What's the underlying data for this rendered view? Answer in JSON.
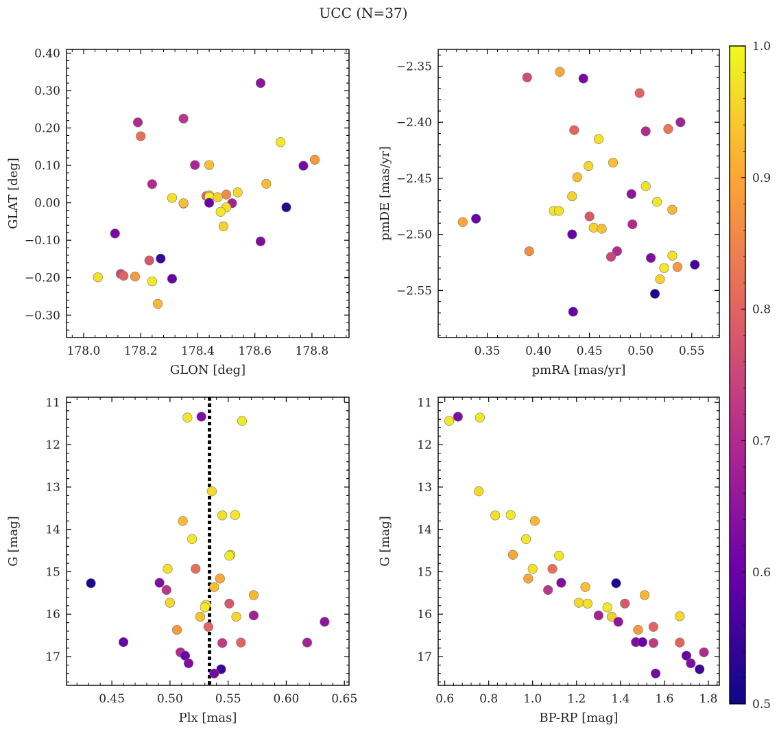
{
  "figure": {
    "title": "UCC (N=37)"
  },
  "colorbar": {
    "min": 0.5,
    "max": 1.0,
    "ticks": [
      0.5,
      0.6,
      0.7,
      0.8,
      0.9,
      1.0
    ]
  },
  "colormap_stops": [
    "#0d0887",
    "#6a00a8",
    "#b12a90",
    "#e16462",
    "#fca636",
    "#f0f921"
  ],
  "chart_data": [
    {
      "type": "scatter",
      "xlabel": "GLON [deg]",
      "ylabel": "GLAT [deg]",
      "xlim": [
        177.94,
        178.93
      ],
      "ylim": [
        -0.36,
        0.41
      ],
      "xticks": [
        178.0,
        178.2,
        178.4,
        178.6,
        178.8
      ],
      "yticks": [
        -0.3,
        -0.2,
        -0.1,
        0.0,
        0.1,
        0.2,
        0.3,
        0.4
      ],
      "points": [
        {
          "x": 178.62,
          "y": 0.32,
          "c": 0.65
        },
        {
          "x": 178.35,
          "y": 0.225,
          "c": 0.72
        },
        {
          "x": 178.19,
          "y": 0.215,
          "c": 0.7
        },
        {
          "x": 178.2,
          "y": 0.178,
          "c": 0.82
        },
        {
          "x": 178.69,
          "y": 0.162,
          "c": 0.98
        },
        {
          "x": 178.81,
          "y": 0.115,
          "c": 0.88
        },
        {
          "x": 178.39,
          "y": 0.101,
          "c": 0.69
        },
        {
          "x": 178.44,
          "y": 0.101,
          "c": 0.93
        },
        {
          "x": 178.77,
          "y": 0.099,
          "c": 0.62
        },
        {
          "x": 178.24,
          "y": 0.05,
          "c": 0.7
        },
        {
          "x": 178.64,
          "y": 0.051,
          "c": 0.93
        },
        {
          "x": 178.54,
          "y": 0.028,
          "c": 0.96
        },
        {
          "x": 178.43,
          "y": 0.018,
          "c": 0.8
        },
        {
          "x": 178.44,
          "y": 0.02,
          "c": 0.92
        },
        {
          "x": 178.5,
          "y": 0.022,
          "c": 0.86
        },
        {
          "x": 178.31,
          "y": 0.013,
          "c": 0.97
        },
        {
          "x": 178.44,
          "y": 0.016,
          "c": 0.99
        },
        {
          "x": 178.47,
          "y": 0.015,
          "c": 0.95
        },
        {
          "x": 178.35,
          "y": -0.002,
          "c": 0.95
        },
        {
          "x": 178.35,
          "y": -0.001,
          "c": 0.93
        },
        {
          "x": 178.44,
          "y": 0.0,
          "c": 0.6
        },
        {
          "x": 178.52,
          "y": -0.001,
          "c": 0.68
        },
        {
          "x": 178.71,
          "y": -0.012,
          "c": 0.53
        },
        {
          "x": 178.5,
          "y": -0.012,
          "c": 0.97
        },
        {
          "x": 178.48,
          "y": -0.024,
          "c": 0.98
        },
        {
          "x": 178.49,
          "y": -0.063,
          "c": 0.95
        },
        {
          "x": 178.11,
          "y": -0.082,
          "c": 0.62
        },
        {
          "x": 178.62,
          "y": -0.103,
          "c": 0.63
        },
        {
          "x": 178.27,
          "y": -0.149,
          "c": 0.55
        },
        {
          "x": 178.23,
          "y": -0.154,
          "c": 0.78
        },
        {
          "x": 178.13,
          "y": -0.19,
          "c": 0.75
        },
        {
          "x": 178.14,
          "y": -0.195,
          "c": 0.8
        },
        {
          "x": 178.18,
          "y": -0.197,
          "c": 0.88
        },
        {
          "x": 178.05,
          "y": -0.199,
          "c": 0.97
        },
        {
          "x": 178.31,
          "y": -0.203,
          "c": 0.6
        },
        {
          "x": 178.24,
          "y": -0.21,
          "c": 0.98
        },
        {
          "x": 178.26,
          "y": -0.27,
          "c": 0.92
        }
      ]
    },
    {
      "type": "scatter",
      "xlabel": "pmRA [mas/yr]",
      "ylabel": "pmDE [mas/yr]",
      "xlim": [
        0.302,
        0.577
      ],
      "ylim": [
        -2.592,
        -2.335
      ],
      "xticks": [
        0.35,
        0.4,
        0.45,
        0.5,
        0.55
      ],
      "yticks": [
        -2.35,
        -2.4,
        -2.45,
        -2.5,
        -2.55
      ],
      "points": [
        {
          "x": 0.421,
          "y": -2.355,
          "c": 0.9
        },
        {
          "x": 0.389,
          "y": -2.36,
          "c": 0.76
        },
        {
          "x": 0.444,
          "y": -2.361,
          "c": 0.62
        },
        {
          "x": 0.499,
          "y": -2.374,
          "c": 0.8
        },
        {
          "x": 0.539,
          "y": -2.4,
          "c": 0.68
        },
        {
          "x": 0.527,
          "y": -2.406,
          "c": 0.83
        },
        {
          "x": 0.435,
          "y": -2.407,
          "c": 0.8
        },
        {
          "x": 0.505,
          "y": -2.408,
          "c": 0.7
        },
        {
          "x": 0.459,
          "y": -2.415,
          "c": 0.97
        },
        {
          "x": 0.473,
          "y": -2.436,
          "c": 0.93
        },
        {
          "x": 0.449,
          "y": -2.439,
          "c": 0.96
        },
        {
          "x": 0.438,
          "y": -2.449,
          "c": 0.93
        },
        {
          "x": 0.505,
          "y": -2.457,
          "c": 0.97
        },
        {
          "x": 0.491,
          "y": -2.464,
          "c": 0.65
        },
        {
          "x": 0.433,
          "y": -2.466,
          "c": 0.95
        },
        {
          "x": 0.516,
          "y": -2.471,
          "c": 0.98
        },
        {
          "x": 0.531,
          "y": -2.478,
          "c": 0.92
        },
        {
          "x": 0.415,
          "y": -2.479,
          "c": 0.98
        },
        {
          "x": 0.42,
          "y": -2.479,
          "c": 0.97
        },
        {
          "x": 0.45,
          "y": -2.484,
          "c": 0.78
        },
        {
          "x": 0.339,
          "y": -2.486,
          "c": 0.6
        },
        {
          "x": 0.326,
          "y": -2.489,
          "c": 0.9
        },
        {
          "x": 0.492,
          "y": -2.491,
          "c": 0.7
        },
        {
          "x": 0.454,
          "y": -2.494,
          "c": 0.95
        },
        {
          "x": 0.462,
          "y": -2.495,
          "c": 0.93
        },
        {
          "x": 0.433,
          "y": -2.5,
          "c": 0.6
        },
        {
          "x": 0.391,
          "y": -2.515,
          "c": 0.86
        },
        {
          "x": 0.477,
          "y": -2.515,
          "c": 0.7
        },
        {
          "x": 0.531,
          "y": -2.519,
          "c": 0.97
        },
        {
          "x": 0.471,
          "y": -2.52,
          "c": 0.75
        },
        {
          "x": 0.51,
          "y": -2.521,
          "c": 0.63
        },
        {
          "x": 0.553,
          "y": -2.527,
          "c": 0.56
        },
        {
          "x": 0.536,
          "y": -2.529,
          "c": 0.88
        },
        {
          "x": 0.523,
          "y": -2.53,
          "c": 0.98
        },
        {
          "x": 0.519,
          "y": -2.54,
          "c": 0.95
        },
        {
          "x": 0.514,
          "y": -2.553,
          "c": 0.52
        },
        {
          "x": 0.434,
          "y": -2.569,
          "c": 0.6
        }
      ]
    },
    {
      "type": "scatter",
      "xlabel": "Plx [mas]",
      "ylabel": "G [mag]",
      "xlim": [
        0.411,
        0.654
      ],
      "ylim": [
        17.68,
        10.88
      ],
      "xticks": [
        0.45,
        0.5,
        0.55,
        0.6,
        0.65
      ],
      "yticks": [
        11,
        12,
        13,
        14,
        15,
        16,
        17
      ],
      "vline_x": 0.534,
      "points": [
        {
          "x": 0.515,
          "y": 11.36,
          "c": 0.98
        },
        {
          "x": 0.527,
          "y": 11.34,
          "c": 0.63
        },
        {
          "x": 0.562,
          "y": 11.44,
          "c": 0.98
        },
        {
          "x": 0.536,
          "y": 13.1,
          "c": 0.96
        },
        {
          "x": 0.545,
          "y": 13.67,
          "c": 0.97
        },
        {
          "x": 0.556,
          "y": 13.66,
          "c": 0.98
        },
        {
          "x": 0.511,
          "y": 13.8,
          "c": 0.92
        },
        {
          "x": 0.519,
          "y": 14.23,
          "c": 0.98
        },
        {
          "x": 0.552,
          "y": 14.6,
          "c": 0.95
        },
        {
          "x": 0.551,
          "y": 14.62,
          "c": 0.98
        },
        {
          "x": 0.498,
          "y": 14.93,
          "c": 0.97
        },
        {
          "x": 0.522,
          "y": 14.93,
          "c": 0.82
        },
        {
          "x": 0.543,
          "y": 15.16,
          "c": 0.9
        },
        {
          "x": 0.432,
          "y": 15.27,
          "c": 0.52
        },
        {
          "x": 0.491,
          "y": 15.26,
          "c": 0.63
        },
        {
          "x": 0.538,
          "y": 15.36,
          "c": 0.93
        },
        {
          "x": 0.497,
          "y": 15.43,
          "c": 0.72
        },
        {
          "x": 0.572,
          "y": 15.55,
          "c": 0.92
        },
        {
          "x": 0.5,
          "y": 15.73,
          "c": 0.96
        },
        {
          "x": 0.551,
          "y": 15.75,
          "c": 0.78
        },
        {
          "x": 0.531,
          "y": 15.78,
          "c": 0.97
        },
        {
          "x": 0.53,
          "y": 15.84,
          "c": 0.98
        },
        {
          "x": 0.572,
          "y": 16.03,
          "c": 0.68
        },
        {
          "x": 0.526,
          "y": 16.06,
          "c": 0.93
        },
        {
          "x": 0.557,
          "y": 16.06,
          "c": 0.96
        },
        {
          "x": 0.633,
          "y": 16.18,
          "c": 0.65
        },
        {
          "x": 0.533,
          "y": 16.3,
          "c": 0.8
        },
        {
          "x": 0.506,
          "y": 16.37,
          "c": 0.88
        },
        {
          "x": 0.46,
          "y": 16.66,
          "c": 0.6
        },
        {
          "x": 0.545,
          "y": 16.68,
          "c": 0.73
        },
        {
          "x": 0.561,
          "y": 16.67,
          "c": 0.8
        },
        {
          "x": 0.618,
          "y": 16.67,
          "c": 0.68
        },
        {
          "x": 0.509,
          "y": 16.9,
          "c": 0.7
        },
        {
          "x": 0.513,
          "y": 16.98,
          "c": 0.6
        },
        {
          "x": 0.516,
          "y": 17.16,
          "c": 0.63
        },
        {
          "x": 0.544,
          "y": 17.3,
          "c": 0.55
        },
        {
          "x": 0.538,
          "y": 17.4,
          "c": 0.62
        }
      ]
    },
    {
      "type": "scatter",
      "xlabel": "BP-RP [mag]",
      "ylabel": "G [mag]",
      "xlim": [
        0.57,
        1.85
      ],
      "ylim": [
        17.68,
        10.88
      ],
      "xticks": [
        0.6,
        0.8,
        1.0,
        1.2,
        1.4,
        1.6,
        1.8
      ],
      "yticks": [
        11,
        12,
        13,
        14,
        15,
        16,
        17
      ],
      "points": [
        {
          "x": 0.62,
          "y": 11.44,
          "c": 0.98
        },
        {
          "x": 0.66,
          "y": 11.34,
          "c": 0.63
        },
        {
          "x": 0.76,
          "y": 11.36,
          "c": 0.98
        },
        {
          "x": 0.755,
          "y": 13.1,
          "c": 0.96
        },
        {
          "x": 0.83,
          "y": 13.67,
          "c": 0.97
        },
        {
          "x": 0.9,
          "y": 13.66,
          "c": 0.98
        },
        {
          "x": 1.01,
          "y": 13.8,
          "c": 0.92
        },
        {
          "x": 0.97,
          "y": 14.23,
          "c": 0.98
        },
        {
          "x": 0.91,
          "y": 14.6,
          "c": 0.9
        },
        {
          "x": 1.12,
          "y": 14.62,
          "c": 0.98
        },
        {
          "x": 1.0,
          "y": 14.93,
          "c": 0.97
        },
        {
          "x": 1.09,
          "y": 14.93,
          "c": 0.82
        },
        {
          "x": 0.98,
          "y": 15.16,
          "c": 0.9
        },
        {
          "x": 1.13,
          "y": 15.26,
          "c": 0.63
        },
        {
          "x": 1.38,
          "y": 15.27,
          "c": 0.52
        },
        {
          "x": 1.24,
          "y": 15.36,
          "c": 0.93
        },
        {
          "x": 1.07,
          "y": 15.43,
          "c": 0.72
        },
        {
          "x": 1.51,
          "y": 15.55,
          "c": 0.92
        },
        {
          "x": 1.21,
          "y": 15.73,
          "c": 0.96
        },
        {
          "x": 1.25,
          "y": 15.75,
          "c": 0.97
        },
        {
          "x": 1.42,
          "y": 15.75,
          "c": 0.78
        },
        {
          "x": 1.34,
          "y": 15.84,
          "c": 0.98
        },
        {
          "x": 1.3,
          "y": 16.03,
          "c": 0.68
        },
        {
          "x": 1.36,
          "y": 16.06,
          "c": 0.95
        },
        {
          "x": 1.67,
          "y": 16.05,
          "c": 0.96
        },
        {
          "x": 1.39,
          "y": 16.18,
          "c": 0.65
        },
        {
          "x": 1.55,
          "y": 16.3,
          "c": 0.8
        },
        {
          "x": 1.48,
          "y": 16.37,
          "c": 0.88
        },
        {
          "x": 1.47,
          "y": 16.66,
          "c": 0.63
        },
        {
          "x": 1.5,
          "y": 16.66,
          "c": 0.6
        },
        {
          "x": 1.55,
          "y": 16.68,
          "c": 0.73
        },
        {
          "x": 1.67,
          "y": 16.67,
          "c": 0.8
        },
        {
          "x": 1.78,
          "y": 16.9,
          "c": 0.7
        },
        {
          "x": 1.7,
          "y": 16.98,
          "c": 0.6
        },
        {
          "x": 1.72,
          "y": 17.16,
          "c": 0.63
        },
        {
          "x": 1.76,
          "y": 17.3,
          "c": 0.55
        },
        {
          "x": 1.56,
          "y": 17.4,
          "c": 0.62
        }
      ]
    }
  ]
}
